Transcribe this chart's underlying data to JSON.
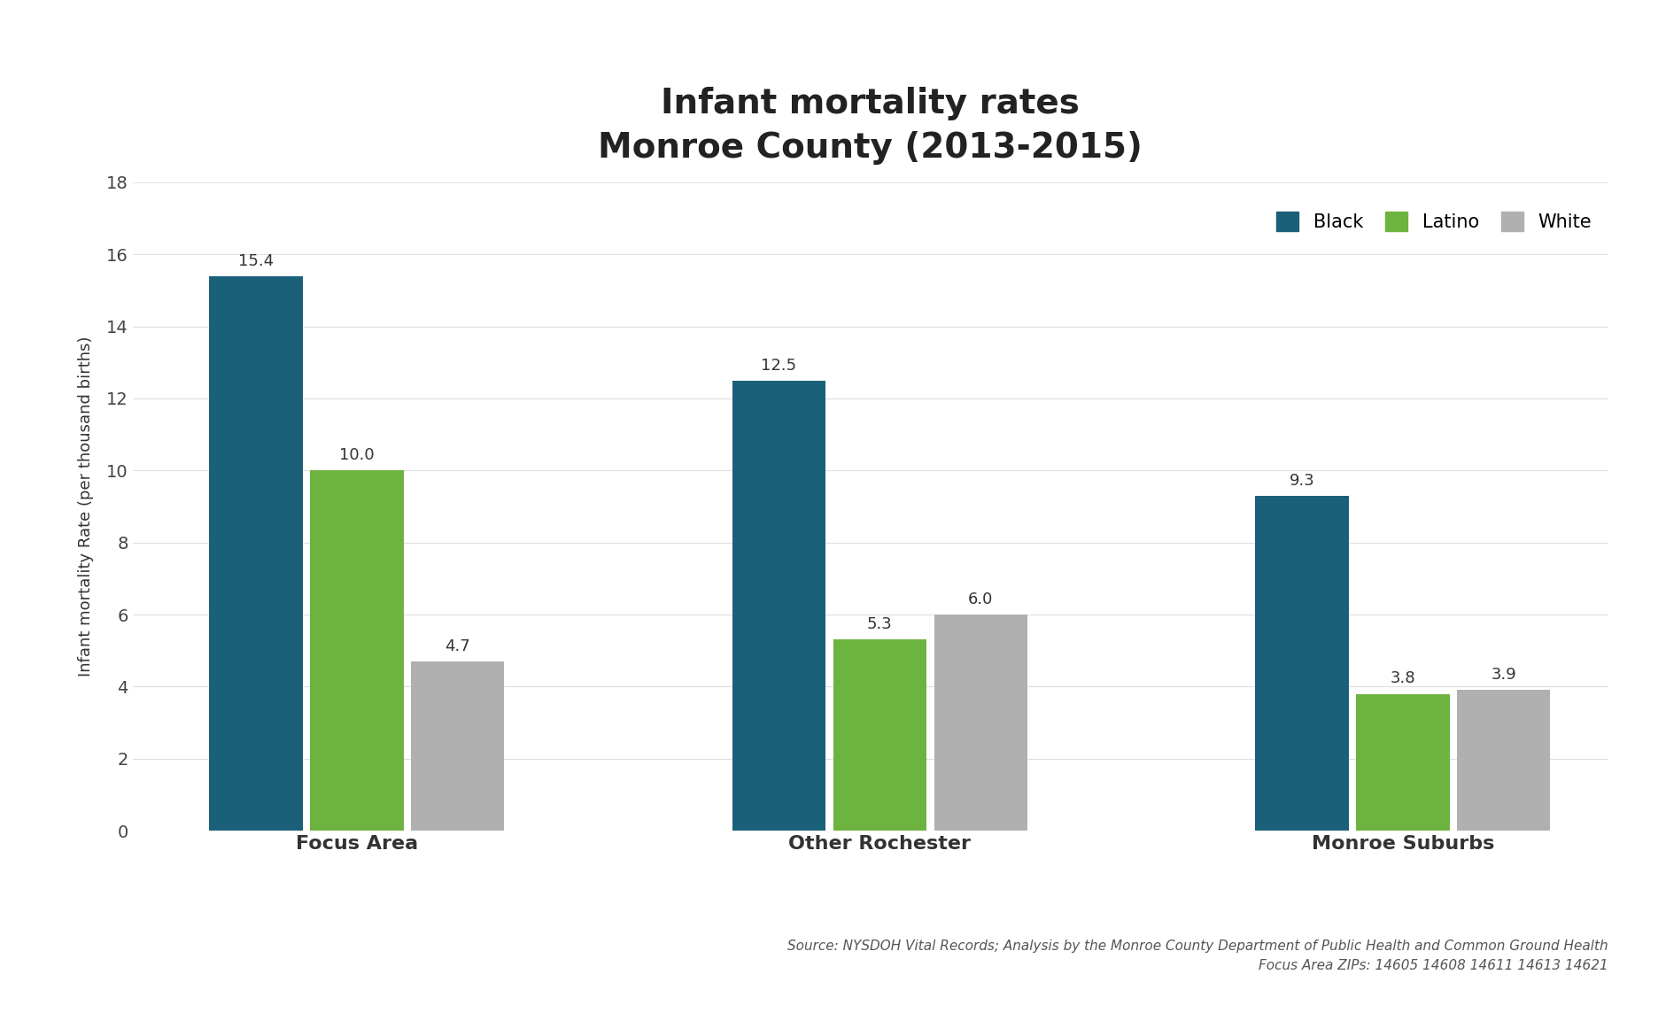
{
  "title_line1": "Infant mortality rates",
  "title_line2": "Monroe County (2013-2015)",
  "categories": [
    "Focus Area",
    "Other Rochester",
    "Monroe Suburbs"
  ],
  "groups": [
    "Black",
    "Latino",
    "White"
  ],
  "values": [
    [
      15.4,
      10.0,
      4.7
    ],
    [
      12.5,
      5.3,
      6.0
    ],
    [
      9.3,
      3.8,
      3.9
    ]
  ],
  "colors": [
    "#1b607a",
    "#6db33f",
    "#b0b0b0"
  ],
  "ylabel": "Infant mortality Rate (per thousand births)",
  "ylim": [
    0,
    18
  ],
  "yticks": [
    0,
    2,
    4,
    6,
    8,
    10,
    12,
    14,
    16,
    18
  ],
  "bar_width": 0.25,
  "source_text": "Source: NYSDOH Vital Records; Analysis by the Monroe County Department of Public Health and Common Ground Health\nFocus Area ZIPs: 14605 14608 14611 14613 14621",
  "background_color": "#ffffff",
  "title_fontsize": 28,
  "value_label_fontsize": 13,
  "tick_fontsize": 14,
  "xtick_fontsize": 16,
  "legend_fontsize": 15,
  "source_fontsize": 11,
  "ylabel_fontsize": 13
}
